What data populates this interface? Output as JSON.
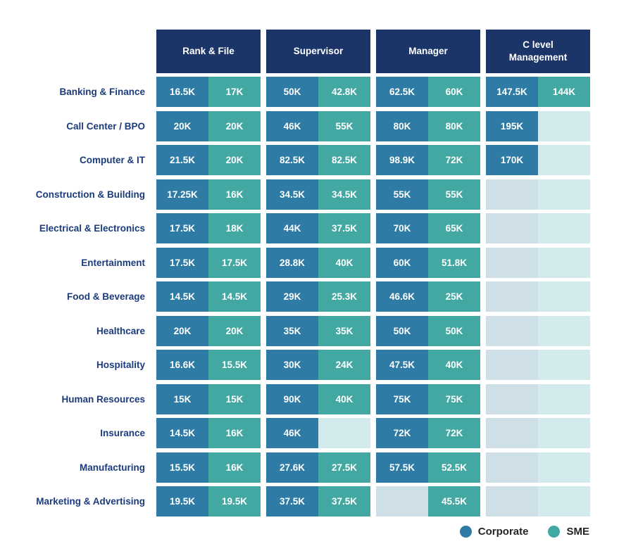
{
  "colors": {
    "header_bg": "#1b3568",
    "corporate": "#2e7ca5",
    "sme": "#42a8a1",
    "corporate_empty": "#cfdfe8",
    "sme_empty": "#d4ebee",
    "row_label_text": "#1b3b7c",
    "legend_text": "#262626",
    "background": "#ffffff",
    "cell_value_text": "#ffffff"
  },
  "legend": {
    "items": [
      {
        "label": "Corporate",
        "color": "#2e7ca5"
      },
      {
        "label": "SME",
        "color": "#42a8a1"
      }
    ]
  },
  "chart_data": {
    "type": "table",
    "columns": [
      "Rank & File",
      "Supervisor",
      "Manager",
      "C level Management"
    ],
    "cell_series": [
      "Corporate",
      "SME"
    ],
    "legend_position": "bottom-right",
    "rows": [
      {
        "label": "Banking & Finance",
        "cells": [
          [
            "16.5K",
            "17K"
          ],
          [
            "50K",
            "42.8K"
          ],
          [
            "62.5K",
            "60K"
          ],
          [
            "147.5K",
            "144K"
          ]
        ]
      },
      {
        "label": "Call Center / BPO",
        "cells": [
          [
            "20K",
            "20K"
          ],
          [
            "46K",
            "55K"
          ],
          [
            "80K",
            "80K"
          ],
          [
            "195K",
            null
          ]
        ]
      },
      {
        "label": "Computer & IT",
        "cells": [
          [
            "21.5K",
            "20K"
          ],
          [
            "82.5K",
            "82.5K"
          ],
          [
            "98.9K",
            "72K"
          ],
          [
            "170K",
            null
          ]
        ]
      },
      {
        "label": "Construction & Building",
        "cells": [
          [
            "17.25K",
            "16K"
          ],
          [
            "34.5K",
            "34.5K"
          ],
          [
            "55K",
            "55K"
          ],
          [
            null,
            null
          ]
        ]
      },
      {
        "label": "Electrical & Electronics",
        "cells": [
          [
            "17.5K",
            "18K"
          ],
          [
            "44K",
            "37.5K"
          ],
          [
            "70K",
            "65K"
          ],
          [
            null,
            null
          ]
        ]
      },
      {
        "label": "Entertainment",
        "cells": [
          [
            "17.5K",
            "17.5K"
          ],
          [
            "28.8K",
            "40K"
          ],
          [
            "60K",
            "51.8K"
          ],
          [
            null,
            null
          ]
        ]
      },
      {
        "label": "Food & Beverage",
        "cells": [
          [
            "14.5K",
            "14.5K"
          ],
          [
            "29K",
            "25.3K"
          ],
          [
            "46.6K",
            "25K"
          ],
          [
            null,
            null
          ]
        ]
      },
      {
        "label": "Healthcare",
        "cells": [
          [
            "20K",
            "20K"
          ],
          [
            "35K",
            "35K"
          ],
          [
            "50K",
            "50K"
          ],
          [
            null,
            null
          ]
        ]
      },
      {
        "label": "Hospitality",
        "cells": [
          [
            "16.6K",
            "15.5K"
          ],
          [
            "30K",
            "24K"
          ],
          [
            "47.5K",
            "40K"
          ],
          [
            null,
            null
          ]
        ]
      },
      {
        "label": "Human Resources",
        "cells": [
          [
            "15K",
            "15K"
          ],
          [
            "90K",
            "40K"
          ],
          [
            "75K",
            "75K"
          ],
          [
            null,
            null
          ]
        ]
      },
      {
        "label": "Insurance",
        "cells": [
          [
            "14.5K",
            "16K"
          ],
          [
            "46K",
            null
          ],
          [
            "72K",
            "72K"
          ],
          [
            null,
            null
          ]
        ]
      },
      {
        "label": "Manufacturing",
        "cells": [
          [
            "15.5K",
            "16K"
          ],
          [
            "27.6K",
            "27.5K"
          ],
          [
            "57.5K",
            "52.5K"
          ],
          [
            null,
            null
          ]
        ]
      },
      {
        "label": "Marketing & Advertising",
        "cells": [
          [
            "19.5K",
            "19.5K"
          ],
          [
            "37.5K",
            "37.5K"
          ],
          [
            null,
            "45.5K"
          ],
          [
            null,
            null
          ]
        ]
      }
    ]
  }
}
